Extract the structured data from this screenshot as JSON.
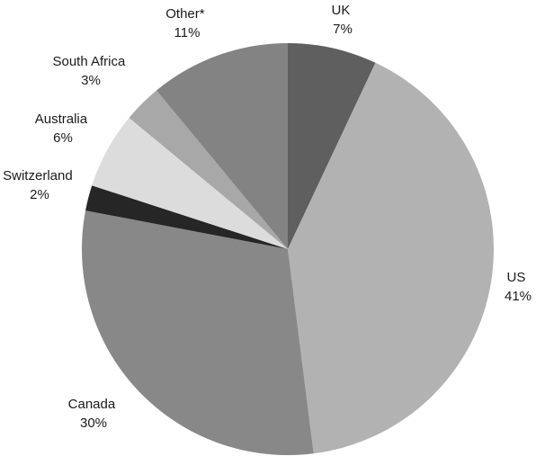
{
  "chart_data": {
    "type": "pie",
    "title": "",
    "slices": [
      {
        "label": "UK",
        "pct_text": "7%",
        "value": 7,
        "color": "#5f5f5f"
      },
      {
        "label": "US",
        "pct_text": "41%",
        "value": 41,
        "color": "#b2b2b2"
      },
      {
        "label": "Canada",
        "pct_text": "30%",
        "value": 30,
        "color": "#888888"
      },
      {
        "label": "Switzerland",
        "pct_text": "2%",
        "value": 2,
        "color": "#262626"
      },
      {
        "label": "Australia",
        "pct_text": "6%",
        "value": 6,
        "color": "#dcdcdc"
      },
      {
        "label": "South Africa",
        "pct_text": "3%",
        "value": 3,
        "color": "#a8a8a8"
      },
      {
        "label": "Other*",
        "pct_text": "11%",
        "value": 11,
        "color": "#838383"
      }
    ],
    "start": "12 o'clock",
    "direction": "clockwise",
    "legend": "none",
    "labels": "outside"
  }
}
